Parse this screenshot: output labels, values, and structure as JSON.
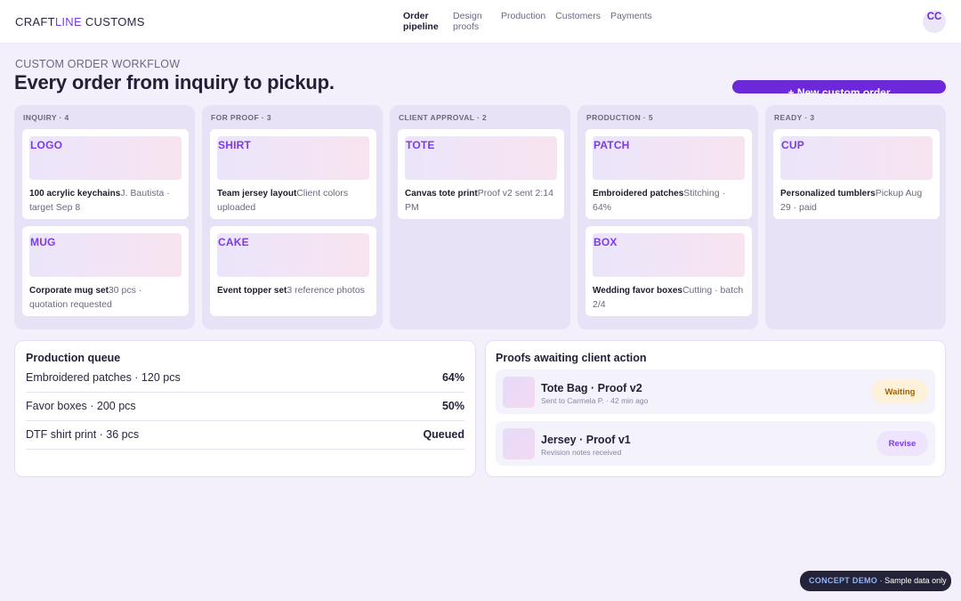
{
  "brand": {
    "part1": "CRAFT",
    "part2": "LINE",
    "part3": " CUSTOMS"
  },
  "nav": {
    "items": [
      {
        "label": "Order pipeline"
      },
      {
        "label": "Design proofs"
      },
      {
        "label": "Production"
      },
      {
        "label": "Customers"
      },
      {
        "label": "Payments"
      }
    ]
  },
  "user": {
    "initials": "CC"
  },
  "header": {
    "eyebrow": "CUSTOM ORDER WORKFLOW",
    "title": "Every order from inquiry to pickup.",
    "new_order_label": "+ New custom order"
  },
  "board": {
    "columns": [
      {
        "heading": "INQUIRY · 4",
        "cards": [
          {
            "thumb": "LOGO",
            "title": "100 acrylic keychains",
            "detail": "J. Bautista · target Sep 8"
          },
          {
            "thumb": "MUG",
            "title": "Corporate mug set",
            "detail": "30 pcs · quotation requested"
          }
        ]
      },
      {
        "heading": "FOR PROOF · 3",
        "cards": [
          {
            "thumb": "SHIRT",
            "title": "Team jersey layout",
            "detail": "Client colors uploaded"
          },
          {
            "thumb": "CAKE",
            "title": "Event topper set",
            "detail": "3 reference photos"
          }
        ]
      },
      {
        "heading": "CLIENT APPROVAL · 2",
        "cards": [
          {
            "thumb": "TOTE",
            "title": "Canvas tote print",
            "detail": "Proof v2 sent 2:14 PM"
          }
        ]
      },
      {
        "heading": "PRODUCTION · 5",
        "cards": [
          {
            "thumb": "PATCH",
            "title": "Embroidered patches",
            "detail": "Stitching · 64%"
          },
          {
            "thumb": "BOX",
            "title": "Wedding favor boxes",
            "detail": "Cutting · batch 2/4"
          }
        ]
      },
      {
        "heading": "READY · 3",
        "cards": [
          {
            "thumb": "CUP",
            "title": "Personalized tumblers",
            "detail": "Pickup Aug 29 · paid"
          }
        ]
      }
    ]
  },
  "queue": {
    "title": "Production queue",
    "rows": [
      {
        "label": "Embroidered patches · 120 pcs",
        "value": "64%"
      },
      {
        "label": "Favor boxes · 200 pcs",
        "value": "50%"
      },
      {
        "label": "DTF shirt print · 36 pcs",
        "value": "Queued"
      }
    ]
  },
  "proofs": {
    "title": "Proofs awaiting client action",
    "rows": [
      {
        "title": "Tote Bag · Proof v2",
        "sub": "Sent to Carmela P. · 42 min ago",
        "status": "Waiting"
      },
      {
        "title": "Jersey · Proof v1",
        "sub": "Revision notes received",
        "status": "Revise"
      }
    ]
  },
  "demo": {
    "tag": "CONCEPT DEMO",
    "text": " · Sample data only"
  },
  "colors": {
    "accent": "#6d28d9",
    "brand_accent": "#7c3aed",
    "waiting_bg": "#fdf1d9",
    "revise_bg": "#efe4fd"
  }
}
